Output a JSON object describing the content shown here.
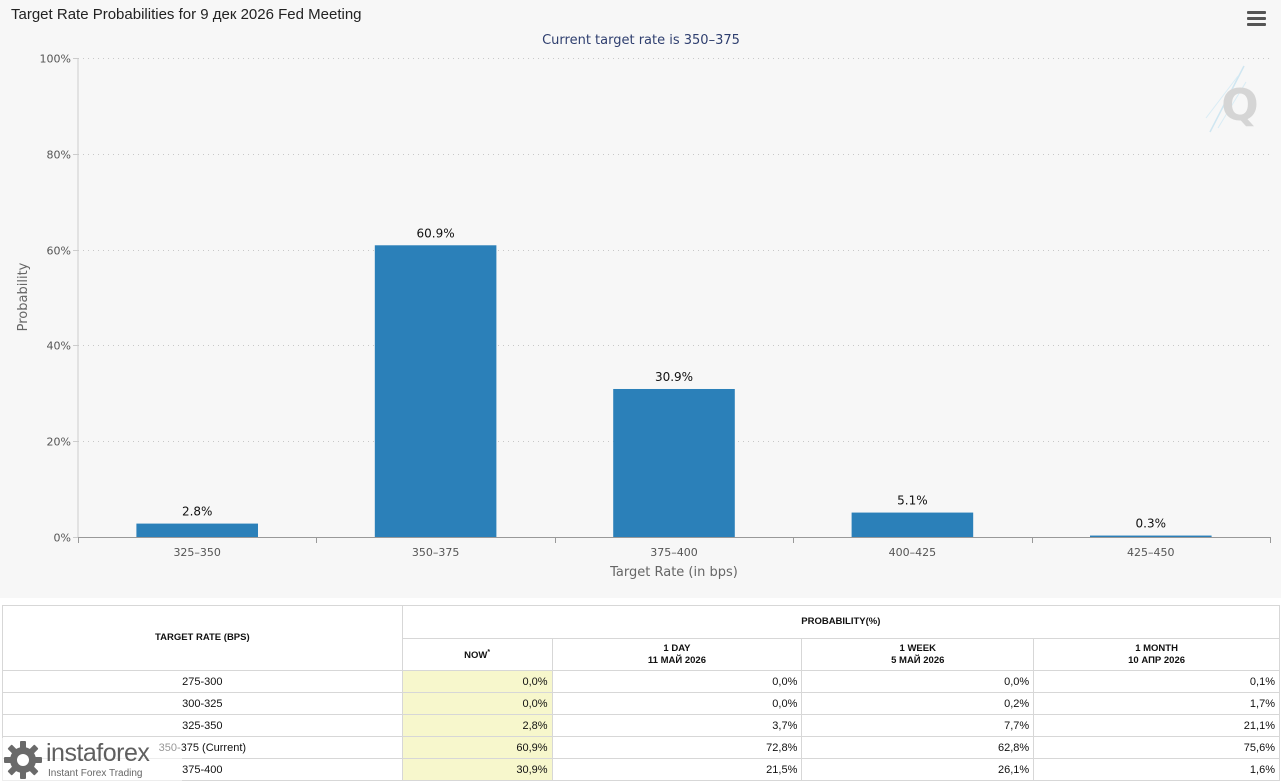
{
  "title": "Target Rate Probabilities for 9 дек 2026 Fed Meeting",
  "menu_icon": "hamburger-menu-icon",
  "chart_data": {
    "type": "bar",
    "subtitle": "Current target rate is 350–375",
    "categories": [
      "325–350",
      "350–375",
      "375–400",
      "400–425",
      "425–450"
    ],
    "values": [
      2.8,
      60.9,
      30.9,
      5.1,
      0.3
    ],
    "data_labels": [
      "2.8%",
      "60.9%",
      "30.9%",
      "5.1%",
      "0.3%"
    ],
    "xlabel": "Target Rate (in bps)",
    "ylabel": "Probability",
    "ylim": [
      0,
      100
    ],
    "yticks": [
      0,
      20,
      40,
      60,
      80,
      100
    ],
    "ytick_labels": [
      "0%",
      "20%",
      "40%",
      "60%",
      "80%",
      "100%"
    ],
    "grid": true,
    "bar_color": "#2b80b9",
    "logo_icon": "q-logo-icon"
  },
  "table": {
    "header_target": "TARGET RATE (BPS)",
    "header_probability": "PROBABILITY(%)",
    "col_now": "NOW",
    "col_now_mark": "*",
    "col_1day_label": "1 DAY",
    "col_1day_date": "11 МАЙ 2026",
    "col_1week_label": "1 WEEK",
    "col_1week_date": "5 МАЙ 2026",
    "col_1month_label": "1 MONTH",
    "col_1month_date": "10 АПР 2026",
    "rows": [
      {
        "rate": "275-300",
        "now": "0,0%",
        "day": "0,0%",
        "week": "0,0%",
        "month": "0,1%"
      },
      {
        "rate": "300-325",
        "now": "0,0%",
        "day": "0,0%",
        "week": "0,2%",
        "month": "1,7%"
      },
      {
        "rate": "325-350",
        "now": "2,8%",
        "day": "3,7%",
        "week": "7,7%",
        "month": "21,1%"
      },
      {
        "rate": "350-375 (Current)",
        "now": "60,9%",
        "day": "72,8%",
        "week": "62,8%",
        "month": "75,6%"
      },
      {
        "rate": "375-400",
        "now": "30,9%",
        "day": "21,5%",
        "week": "26,1%",
        "month": "1,6%"
      }
    ]
  },
  "watermark": {
    "name": "instaforex",
    "tagline": "Instant Forex Trading",
    "icon": "instaforex-gear-logo-icon"
  }
}
